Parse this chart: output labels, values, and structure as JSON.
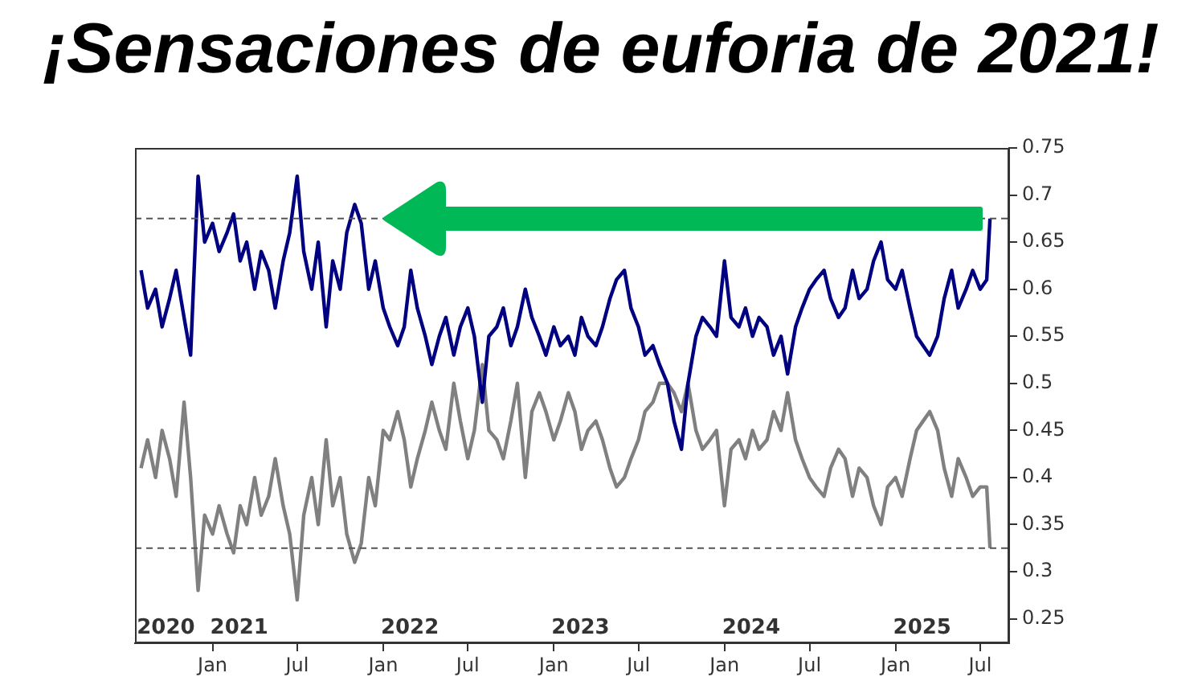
{
  "chart_data": {
    "type": "line",
    "title": "¡Sensaciones de euforia de 2021!",
    "x": [
      "2020-08-01",
      "2020-08-15",
      "2020-09-01",
      "2020-09-15",
      "2020-10-01",
      "2020-10-15",
      "2020-11-01",
      "2020-11-15",
      "2020-12-01",
      "2020-12-15",
      "2021-01-01",
      "2021-01-15",
      "2021-02-01",
      "2021-02-15",
      "2021-03-01",
      "2021-03-15",
      "2021-04-01",
      "2021-04-15",
      "2021-05-01",
      "2021-05-15",
      "2021-06-01",
      "2021-06-15",
      "2021-07-01",
      "2021-07-15",
      "2021-08-01",
      "2021-08-15",
      "2021-09-01",
      "2021-09-15",
      "2021-10-01",
      "2021-10-15",
      "2021-11-01",
      "2021-11-15",
      "2021-12-01",
      "2021-12-15",
      "2022-01-01",
      "2022-01-15",
      "2022-02-01",
      "2022-02-15",
      "2022-03-01",
      "2022-03-15",
      "2022-04-01",
      "2022-04-15",
      "2022-05-01",
      "2022-05-15",
      "2022-06-01",
      "2022-06-15",
      "2022-07-01",
      "2022-07-15",
      "2022-08-01",
      "2022-08-15",
      "2022-09-01",
      "2022-09-15",
      "2022-10-01",
      "2022-10-15",
      "2022-11-01",
      "2022-11-15",
      "2022-12-01",
      "2022-12-15",
      "2023-01-01",
      "2023-01-15",
      "2023-02-01",
      "2023-02-15",
      "2023-03-01",
      "2023-03-15",
      "2023-04-01",
      "2023-04-15",
      "2023-05-01",
      "2023-05-15",
      "2023-06-01",
      "2023-06-15",
      "2023-07-01",
      "2023-07-15",
      "2023-08-01",
      "2023-08-15",
      "2023-09-01",
      "2023-09-15",
      "2023-10-01",
      "2023-10-15",
      "2023-11-01",
      "2023-11-15",
      "2023-12-01",
      "2023-12-15",
      "2024-01-01",
      "2024-01-15",
      "2024-02-01",
      "2024-02-15",
      "2024-03-01",
      "2024-03-15",
      "2024-04-01",
      "2024-04-15",
      "2024-05-01",
      "2024-05-15",
      "2024-06-01",
      "2024-06-15",
      "2024-07-01",
      "2024-07-15",
      "2024-08-01",
      "2024-08-15",
      "2024-09-01",
      "2024-09-15",
      "2024-10-01",
      "2024-10-15",
      "2024-11-01",
      "2024-11-15",
      "2024-12-01",
      "2024-12-15",
      "2025-01-01",
      "2025-01-15",
      "2025-02-01",
      "2025-02-15",
      "2025-03-01",
      "2025-03-15",
      "2025-04-01",
      "2025-04-15",
      "2025-05-01",
      "2025-05-15",
      "2025-06-01",
      "2025-06-15",
      "2025-07-01",
      "2025-07-15",
      "2025-07-22"
    ],
    "series": [
      {
        "color": "#000080",
        "values": [
          0.62,
          0.58,
          0.6,
          0.56,
          0.59,
          0.62,
          0.57,
          0.53,
          0.72,
          0.65,
          0.67,
          0.64,
          0.66,
          0.68,
          0.63,
          0.65,
          0.6,
          0.64,
          0.62,
          0.58,
          0.63,
          0.66,
          0.72,
          0.64,
          0.6,
          0.65,
          0.56,
          0.63,
          0.6,
          0.66,
          0.69,
          0.67,
          0.6,
          0.63,
          0.58,
          0.56,
          0.54,
          0.56,
          0.62,
          0.58,
          0.55,
          0.52,
          0.55,
          0.57,
          0.53,
          0.56,
          0.58,
          0.55,
          0.48,
          0.55,
          0.56,
          0.58,
          0.54,
          0.56,
          0.6,
          0.57,
          0.55,
          0.53,
          0.56,
          0.54,
          0.55,
          0.53,
          0.57,
          0.55,
          0.54,
          0.56,
          0.59,
          0.61,
          0.62,
          0.58,
          0.56,
          0.53,
          0.54,
          0.52,
          0.5,
          0.46,
          0.43,
          0.5,
          0.55,
          0.57,
          0.56,
          0.55,
          0.63,
          0.57,
          0.56,
          0.58,
          0.55,
          0.57,
          0.56,
          0.53,
          0.55,
          0.51,
          0.56,
          0.58,
          0.6,
          0.61,
          0.62,
          0.59,
          0.57,
          0.58,
          0.62,
          0.59,
          0.6,
          0.63,
          0.65,
          0.61,
          0.6,
          0.62,
          0.58,
          0.55,
          0.54,
          0.53,
          0.55,
          0.59,
          0.62,
          0.58,
          0.6,
          0.62,
          0.6,
          0.61,
          0.675
        ]
      },
      {
        "color": "#808080",
        "values": [
          0.41,
          0.44,
          0.4,
          0.45,
          0.42,
          0.38,
          0.48,
          0.4,
          0.28,
          0.36,
          0.34,
          0.37,
          0.34,
          0.32,
          0.37,
          0.35,
          0.4,
          0.36,
          0.38,
          0.42,
          0.37,
          0.34,
          0.27,
          0.36,
          0.4,
          0.35,
          0.44,
          0.37,
          0.4,
          0.34,
          0.31,
          0.33,
          0.4,
          0.37,
          0.45,
          0.44,
          0.47,
          0.44,
          0.39,
          0.42,
          0.45,
          0.48,
          0.45,
          0.43,
          0.5,
          0.46,
          0.42,
          0.45,
          0.52,
          0.45,
          0.44,
          0.42,
          0.46,
          0.5,
          0.4,
          0.47,
          0.49,
          0.47,
          0.44,
          0.46,
          0.49,
          0.47,
          0.43,
          0.45,
          0.46,
          0.44,
          0.41,
          0.39,
          0.4,
          0.42,
          0.44,
          0.47,
          0.48,
          0.5,
          0.5,
          0.49,
          0.47,
          0.5,
          0.45,
          0.43,
          0.44,
          0.45,
          0.37,
          0.43,
          0.44,
          0.42,
          0.45,
          0.43,
          0.44,
          0.47,
          0.45,
          0.49,
          0.44,
          0.42,
          0.4,
          0.39,
          0.38,
          0.41,
          0.43,
          0.42,
          0.38,
          0.41,
          0.4,
          0.37,
          0.35,
          0.39,
          0.4,
          0.38,
          0.42,
          0.45,
          0.46,
          0.47,
          0.45,
          0.41,
          0.38,
          0.42,
          0.4,
          0.38,
          0.39,
          0.39,
          0.325
        ]
      }
    ],
    "xlim": [
      "2020-07-19",
      "2025-09-01"
    ],
    "xticks": [
      {
        "value": "2021-01-01",
        "label": "Jan"
      },
      {
        "value": "2021-07-01",
        "label": "Jul"
      },
      {
        "value": "2022-01-01",
        "label": "Jan"
      },
      {
        "value": "2022-07-01",
        "label": "Jul"
      },
      {
        "value": "2023-01-01",
        "label": "Jan"
      },
      {
        "value": "2023-07-01",
        "label": "Jul"
      },
      {
        "value": "2024-01-01",
        "label": "Jan"
      },
      {
        "value": "2024-07-01",
        "label": "Jul"
      },
      {
        "value": "2025-01-01",
        "label": "Jan"
      },
      {
        "value": "2025-07-01",
        "label": "Jul"
      }
    ],
    "ylim": [
      0.224,
      0.75
    ],
    "yticks": [
      0.25,
      0.3,
      0.35,
      0.4,
      0.45,
      0.5,
      0.55,
      0.6,
      0.65,
      0.7,
      0.75
    ],
    "ref_lines": [
      {
        "axis": "y",
        "value": 0.675,
        "color": "#555555",
        "line_style": "dashed"
      },
      {
        "axis": "y",
        "value": 0.325,
        "color": "#555555",
        "line_style": "dashed"
      }
    ],
    "x2lim": [
      "2020-07-19",
      "2025-09-01"
    ],
    "x2ticks": [
      {
        "value": "2020-09-23",
        "label": "2020"
      },
      {
        "value": "2021-02-27",
        "label": "2021"
      },
      {
        "value": "2022-02-27",
        "label": "2022"
      },
      {
        "value": "2023-02-27",
        "label": "2023"
      },
      {
        "value": "2024-02-27",
        "label": "2024"
      },
      {
        "value": "2025-02-27",
        "label": "2025"
      }
    ],
    "grid": false,
    "legend": false,
    "marker": "none",
    "line_style": "solid"
  }
}
